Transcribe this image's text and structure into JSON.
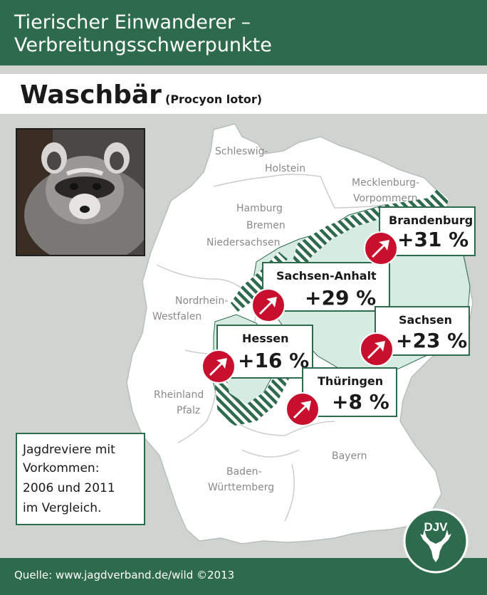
{
  "header": {
    "title_line1": "Tierischer Einwanderer –",
    "title_line2": "Verbreitungsschwerpunkte"
  },
  "species": {
    "name": "Waschbär",
    "latin": "(Procyon lotor)"
  },
  "regions": {
    "schleswig": "Schleswig-",
    "holstein": "Holstein",
    "mecklenburg": "Mecklenburg-",
    "vorpommern": "Vorpommern",
    "hamburg": "Hamburg",
    "bremen": "Bremen",
    "niedersachsen": "Niedersachsen",
    "nordrhein": "Nordrhein-",
    "westfalen": "Westfalen",
    "rheinland": "Rheinland",
    "pfalz": "Pfalz",
    "baden": "Baden-",
    "wuerttemberg": "Württemberg",
    "bayern": "Bayern"
  },
  "stats": {
    "brandenburg": {
      "name": "Brandenburg",
      "value": "+31 %"
    },
    "sachsen_anhalt": {
      "name": "Sachsen-Anhalt",
      "value": "+29 %"
    },
    "sachsen": {
      "name": "Sachsen",
      "value": "+23 %"
    },
    "hessen": {
      "name": "Hessen",
      "value": "+16 %"
    },
    "thueringen": {
      "name": "Thüringen",
      "value": "+8 %"
    }
  },
  "legend": {
    "line1": "Jagdreviere mit",
    "line2": "Vorkommen:",
    "line3": "2006 und 2011",
    "line4": "im Vergleich."
  },
  "logo": {
    "text": "DJV"
  },
  "footer": {
    "source": "Quelle: www.jagdverband.de/wild    ©2013"
  },
  "colors": {
    "brand_green": "#2d6b4c",
    "occurrence_fill": "#d6ebe1",
    "arrow_red": "#c8102e",
    "map_background": "#cfd4d1"
  },
  "icons": {
    "increase": "arrow-up-right-icon",
    "logo": "deer-head-icon"
  }
}
